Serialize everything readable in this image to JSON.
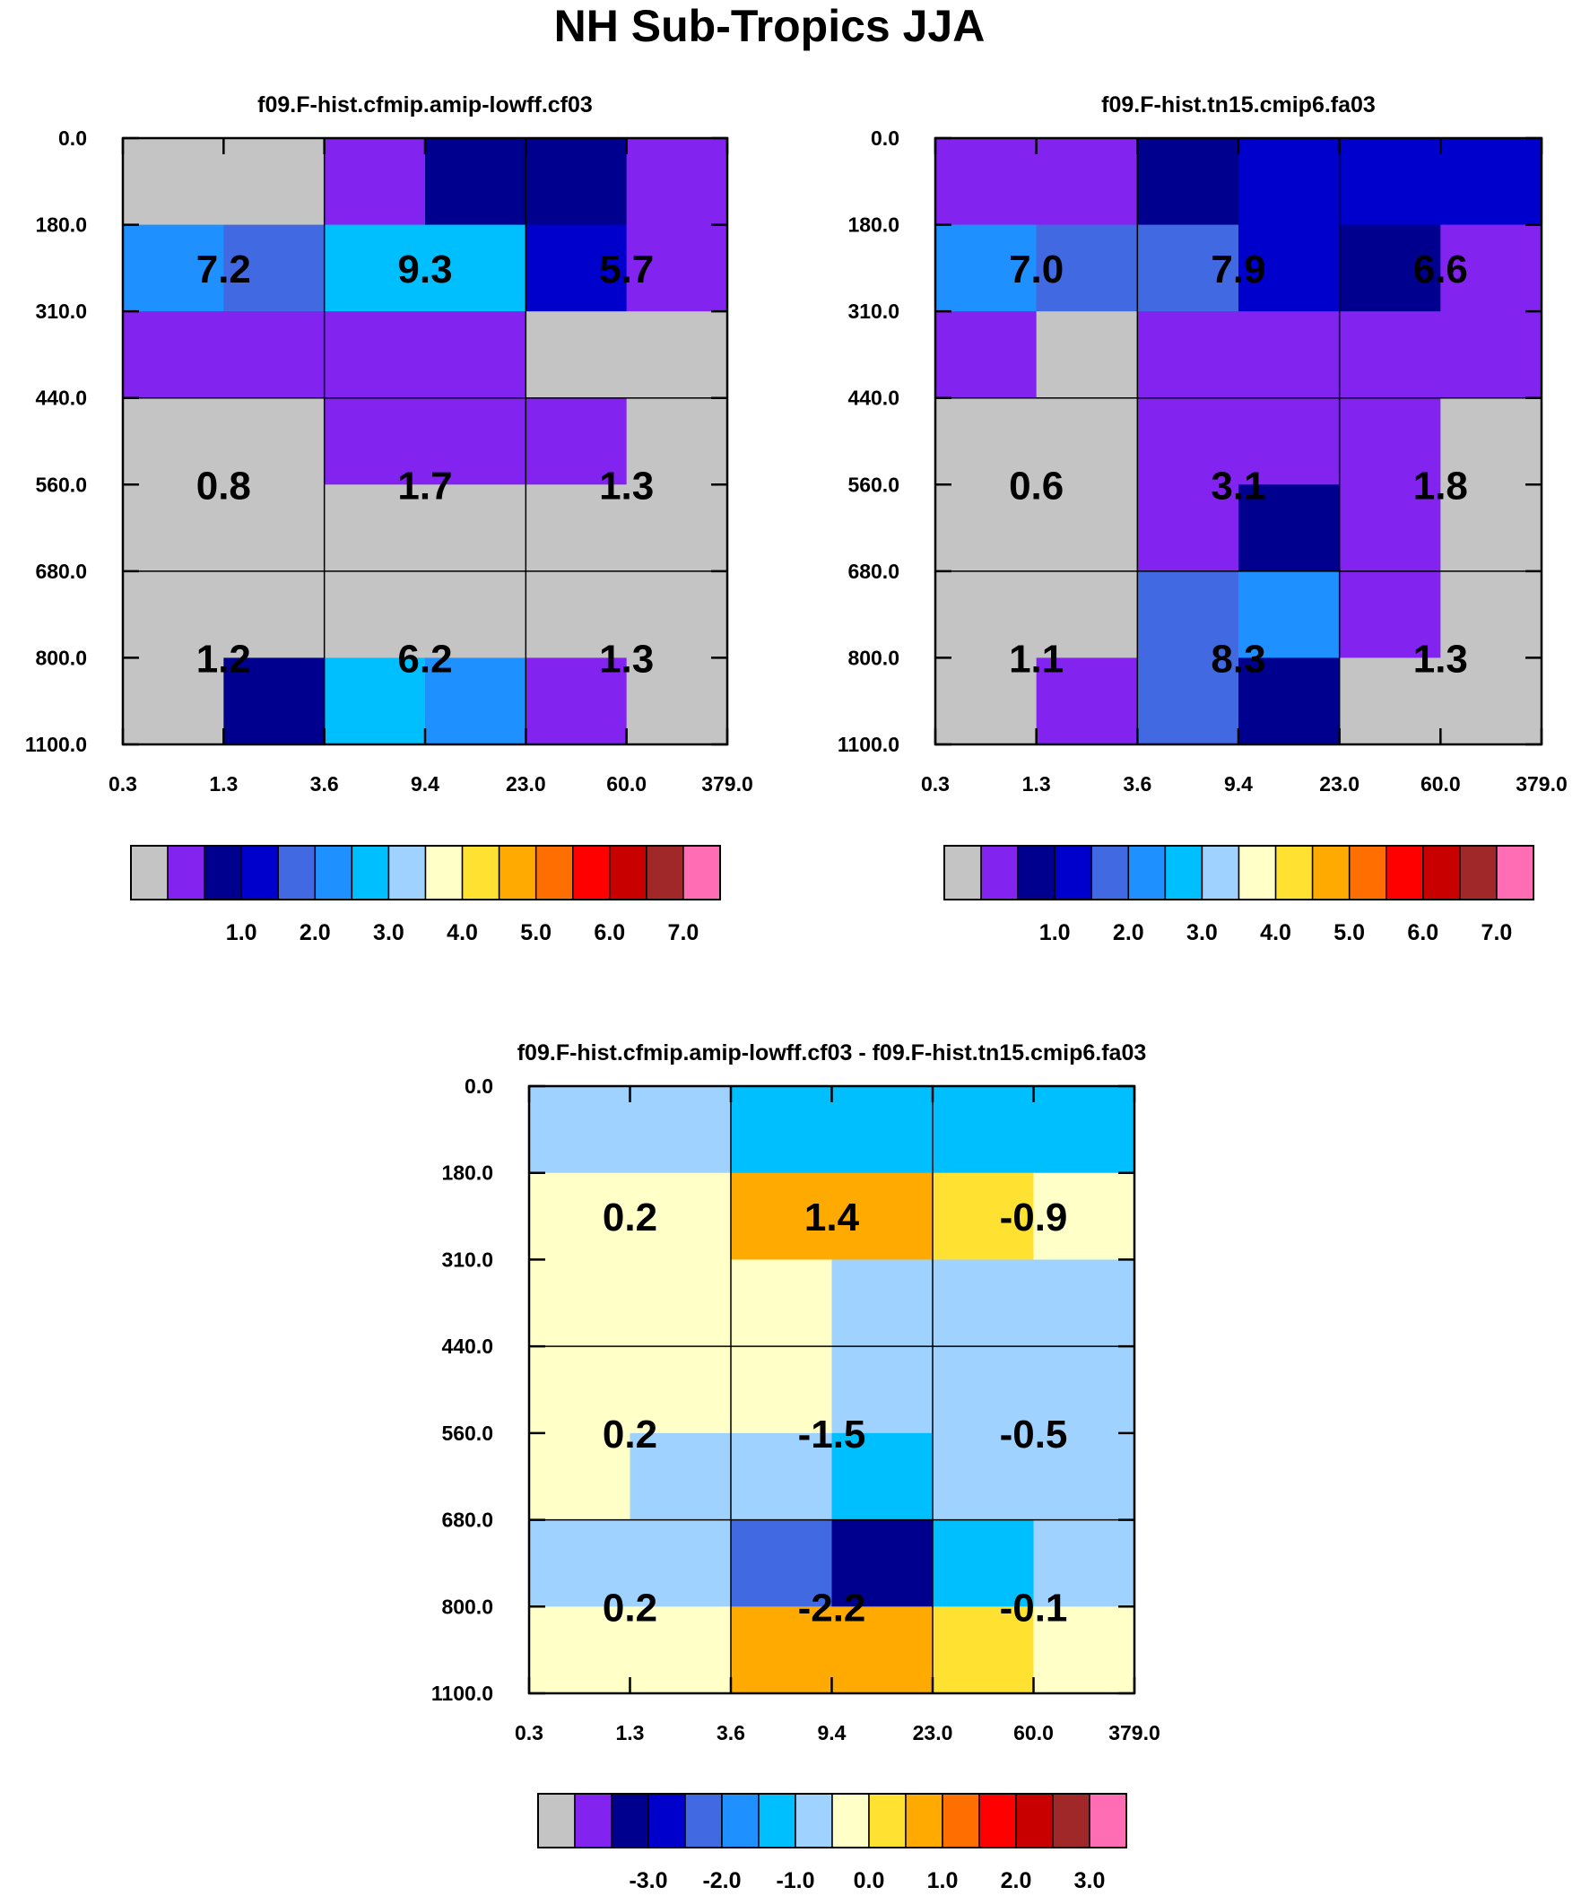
{
  "title": "NH Sub-Tropics JJA",
  "palette": [
    "#c4c4c4",
    "#8223f0",
    "#00008e",
    "#0000cd",
    "#4169e1",
    "#1e90ff",
    "#00bfff",
    "#a0d2ff",
    "#ffffc8",
    "#ffe132",
    "#ffaa00",
    "#ff6e00",
    "#ff0000",
    "#c80000",
    "#a02828",
    "#ff6eb4"
  ],
  "y_ticks": [
    "0.0",
    "180.0",
    "310.0",
    "440.0",
    "560.0",
    "680.0",
    "800.0",
    "1100.0"
  ],
  "x_ticks": [
    "0.3",
    "1.3",
    "3.6",
    "9.4",
    "23.0",
    "60.0",
    "379.0"
  ],
  "chart_data": [
    {
      "type": "heatmap",
      "title": "f09.F-hist.cfmip.amip-lowff.cf03",
      "xlabel": "",
      "ylabel": "",
      "x_ticks": [
        "0.3",
        "1.3",
        "3.6",
        "9.4",
        "23.0",
        "60.0",
        "379.0"
      ],
      "y_ticks": [
        "0.0",
        "180.0",
        "310.0",
        "440.0",
        "560.0",
        "680.0",
        "800.0",
        "1100.0"
      ],
      "cells": [
        [
          0,
          0,
          1,
          2,
          2,
          1
        ],
        [
          5,
          4,
          6,
          6,
          3,
          1
        ],
        [
          1,
          1,
          1,
          1,
          0,
          0
        ],
        [
          0,
          0,
          1,
          1,
          1,
          0
        ],
        [
          0,
          0,
          0,
          0,
          0,
          0
        ],
        [
          0,
          0,
          0,
          0,
          0,
          0
        ],
        [
          0,
          2,
          6,
          5,
          1,
          0
        ]
      ],
      "summary_values": [
        [
          "7.2",
          "9.3",
          "5.7"
        ],
        [
          "0.8",
          "1.7",
          "1.3"
        ],
        [
          "1.2",
          "6.2",
          "1.3"
        ]
      ],
      "colorbar_labels": [
        "1.0",
        "2.0",
        "3.0",
        "4.0",
        "5.0",
        "6.0",
        "7.0"
      ]
    },
    {
      "type": "heatmap",
      "title": "f09.F-hist.tn15.cmip6.fa03",
      "xlabel": "",
      "ylabel": "",
      "x_ticks": [
        "0.3",
        "1.3",
        "3.6",
        "9.4",
        "23.0",
        "60.0",
        "379.0"
      ],
      "y_ticks": [
        "0.0",
        "180.0",
        "310.0",
        "440.0",
        "560.0",
        "680.0",
        "800.0",
        "1100.0"
      ],
      "cells": [
        [
          1,
          1,
          2,
          3,
          3,
          3
        ],
        [
          5,
          4,
          4,
          3,
          2,
          1
        ],
        [
          1,
          0,
          1,
          1,
          1,
          1
        ],
        [
          0,
          0,
          1,
          1,
          1,
          0
        ],
        [
          0,
          0,
          1,
          2,
          1,
          0
        ],
        [
          0,
          0,
          4,
          5,
          1,
          0
        ],
        [
          0,
          1,
          4,
          2,
          0,
          0
        ]
      ],
      "summary_values": [
        [
          "7.0",
          "7.9",
          "6.6"
        ],
        [
          "0.6",
          "3.1",
          "1.8"
        ],
        [
          "1.1",
          "8.3",
          "1.3"
        ]
      ],
      "colorbar_labels": [
        "1.0",
        "2.0",
        "3.0",
        "4.0",
        "5.0",
        "6.0",
        "7.0"
      ]
    },
    {
      "type": "heatmap",
      "title": "f09.F-hist.cfmip.amip-lowff.cf03 - f09.F-hist.tn15.cmip6.fa03",
      "xlabel": "",
      "ylabel": "",
      "x_ticks": [
        "0.3",
        "1.3",
        "3.6",
        "9.4",
        "23.0",
        "60.0",
        "379.0"
      ],
      "y_ticks": [
        "0.0",
        "180.0",
        "310.0",
        "440.0",
        "560.0",
        "680.0",
        "800.0",
        "1100.0"
      ],
      "cells": [
        [
          7,
          7,
          6,
          6,
          6,
          6
        ],
        [
          8,
          8,
          10,
          10,
          9,
          8
        ],
        [
          8,
          8,
          8,
          7,
          7,
          7
        ],
        [
          8,
          8,
          8,
          7,
          7,
          7
        ],
        [
          8,
          7,
          7,
          6,
          7,
          7
        ],
        [
          7,
          7,
          4,
          2,
          6,
          7
        ],
        [
          8,
          8,
          10,
          10,
          9,
          8
        ]
      ],
      "summary_values": [
        [
          "0.2",
          "1.4",
          "-0.9"
        ],
        [
          "0.2",
          "-1.5",
          "-0.5"
        ],
        [
          "0.2",
          "-2.2",
          "-0.1"
        ]
      ],
      "colorbar_labels": [
        "-3.0",
        "-2.0",
        "-1.0",
        "0.0",
        "1.0",
        "2.0",
        "3.0"
      ]
    }
  ]
}
